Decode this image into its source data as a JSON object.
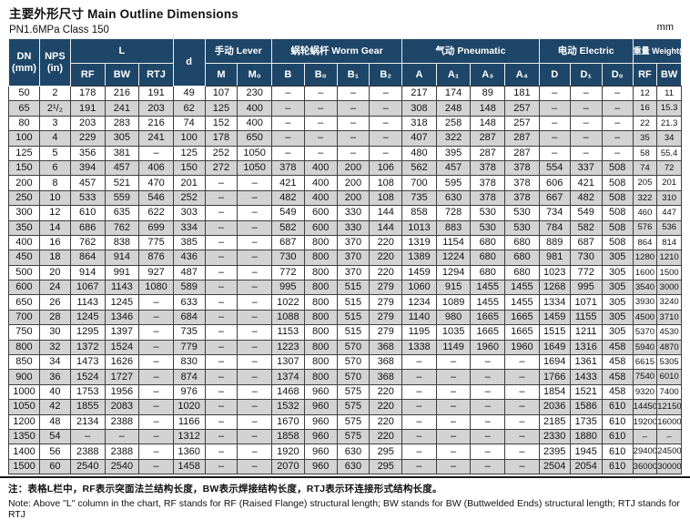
{
  "header": {
    "title": "主要外形尺寸 Main Outline Dimensions",
    "subtitle": "PN1.6MPa  Class 150",
    "unit_label": "mm"
  },
  "table": {
    "groups": {
      "dn": [
        "DN",
        "(mm)"
      ],
      "nps": [
        "NPS",
        "(in)"
      ],
      "l": "L",
      "d": "d",
      "lever": "手动 Lever",
      "worm_gear": "蜗轮蜗杆 Worm Gear",
      "pneumatic": "气动 Pneumatic",
      "electric": "电动 Electric",
      "weight": "重量 Weight(kg)"
    },
    "subheaders": [
      "RF",
      "BW",
      "RTJ",
      "M",
      "M₀",
      "B",
      "B₀",
      "B₁",
      "B₂",
      "A",
      "A₁",
      "A₃",
      "A₄",
      "D",
      "D₁",
      "D₀",
      "RF",
      "BW"
    ],
    "rows": [
      [
        "50",
        "2",
        "178",
        "216",
        "191",
        "49",
        "107",
        "230",
        "–",
        "–",
        "–",
        "–",
        "217",
        "174",
        "89",
        "181",
        "–",
        "–",
        "–",
        "12",
        "11"
      ],
      [
        "65",
        "2¹/₂",
        "191",
        "241",
        "203",
        "62",
        "125",
        "400",
        "–",
        "–",
        "–",
        "–",
        "308",
        "248",
        "148",
        "257",
        "–",
        "–",
        "–",
        "16",
        "15.3"
      ],
      [
        "80",
        "3",
        "203",
        "283",
        "216",
        "74",
        "152",
        "400",
        "–",
        "–",
        "–",
        "–",
        "318",
        "258",
        "148",
        "257",
        "–",
        "–",
        "–",
        "22",
        "21.3"
      ],
      [
        "100",
        "4",
        "229",
        "305",
        "241",
        "100",
        "178",
        "650",
        "–",
        "–",
        "–",
        "–",
        "407",
        "322",
        "287",
        "287",
        "–",
        "–",
        "–",
        "35",
        "34"
      ],
      [
        "125",
        "5",
        "356",
        "381",
        "–",
        "125",
        "252",
        "1050",
        "–",
        "–",
        "–",
        "–",
        "480",
        "395",
        "287",
        "287",
        "–",
        "–",
        "–",
        "58",
        "55.4"
      ],
      [
        "150",
        "6",
        "394",
        "457",
        "406",
        "150",
        "272",
        "1050",
        "378",
        "400",
        "200",
        "106",
        "562",
        "457",
        "378",
        "378",
        "554",
        "337",
        "508",
        "74",
        "72"
      ],
      [
        "200",
        "8",
        "457",
        "521",
        "470",
        "201",
        "–",
        "–",
        "421",
        "400",
        "200",
        "108",
        "700",
        "595",
        "378",
        "378",
        "606",
        "421",
        "508",
        "205",
        "201"
      ],
      [
        "250",
        "10",
        "533",
        "559",
        "546",
        "252",
        "–",
        "–",
        "482",
        "400",
        "200",
        "108",
        "735",
        "630",
        "378",
        "378",
        "667",
        "482",
        "508",
        "322",
        "310"
      ],
      [
        "300",
        "12",
        "610",
        "635",
        "622",
        "303",
        "–",
        "–",
        "549",
        "600",
        "330",
        "144",
        "858",
        "728",
        "530",
        "530",
        "734",
        "549",
        "508",
        "460",
        "447"
      ],
      [
        "350",
        "14",
        "686",
        "762",
        "699",
        "334",
        "–",
        "–",
        "582",
        "600",
        "330",
        "144",
        "1013",
        "883",
        "530",
        "530",
        "784",
        "582",
        "508",
        "576",
        "536"
      ],
      [
        "400",
        "16",
        "762",
        "838",
        "775",
        "385",
        "–",
        "–",
        "687",
        "800",
        "370",
        "220",
        "1319",
        "1154",
        "680",
        "680",
        "889",
        "687",
        "508",
        "864",
        "814"
      ],
      [
        "450",
        "18",
        "864",
        "914",
        "876",
        "436",
        "–",
        "–",
        "730",
        "800",
        "370",
        "220",
        "1389",
        "1224",
        "680",
        "680",
        "981",
        "730",
        "305",
        "1280",
        "1210"
      ],
      [
        "500",
        "20",
        "914",
        "991",
        "927",
        "487",
        "–",
        "–",
        "772",
        "800",
        "370",
        "220",
        "1459",
        "1294",
        "680",
        "680",
        "1023",
        "772",
        "305",
        "1600",
        "1500"
      ],
      [
        "600",
        "24",
        "1067",
        "1143",
        "1080",
        "589",
        "–",
        "–",
        "995",
        "800",
        "515",
        "279",
        "1060",
        "915",
        "1455",
        "1455",
        "1268",
        "995",
        "305",
        "3540",
        "3000"
      ],
      [
        "650",
        "26",
        "1143",
        "1245",
        "–",
        "633",
        "–",
        "–",
        "1022",
        "800",
        "515",
        "279",
        "1234",
        "1089",
        "1455",
        "1455",
        "1334",
        "1071",
        "305",
        "3930",
        "3240"
      ],
      [
        "700",
        "28",
        "1245",
        "1346",
        "–",
        "684",
        "–",
        "–",
        "1088",
        "800",
        "515",
        "279",
        "1140",
        "980",
        "1665",
        "1665",
        "1459",
        "1155",
        "305",
        "4500",
        "3710"
      ],
      [
        "750",
        "30",
        "1295",
        "1397",
        "–",
        "735",
        "–",
        "–",
        "1153",
        "800",
        "515",
        "279",
        "1195",
        "1035",
        "1665",
        "1665",
        "1515",
        "1211",
        "305",
        "5370",
        "4530"
      ],
      [
        "800",
        "32",
        "1372",
        "1524",
        "–",
        "779",
        "–",
        "–",
        "1223",
        "800",
        "570",
        "368",
        "1338",
        "1149",
        "1960",
        "1960",
        "1649",
        "1316",
        "458",
        "5940",
        "4870"
      ],
      [
        "850",
        "34",
        "1473",
        "1626",
        "–",
        "830",
        "–",
        "–",
        "1307",
        "800",
        "570",
        "368",
        "–",
        "–",
        "–",
        "–",
        "1694",
        "1361",
        "458",
        "6615",
        "5305"
      ],
      [
        "900",
        "36",
        "1524",
        "1727",
        "–",
        "874",
        "–",
        "–",
        "1374",
        "800",
        "570",
        "368",
        "–",
        "–",
        "–",
        "–",
        "1766",
        "1433",
        "458",
        "7540",
        "6010"
      ],
      [
        "1000",
        "40",
        "1753",
        "1956",
        "–",
        "976",
        "–",
        "–",
        "1468",
        "960",
        "575",
        "220",
        "–",
        "–",
        "–",
        "–",
        "1854",
        "1521",
        "458",
        "9320",
        "7400"
      ],
      [
        "1050",
        "42",
        "1855",
        "2083",
        "–",
        "1020",
        "–",
        "–",
        "1532",
        "960",
        "575",
        "220",
        "–",
        "–",
        "–",
        "–",
        "2036",
        "1586",
        "610",
        "14450",
        "12150"
      ],
      [
        "1200",
        "48",
        "2134",
        "2388",
        "–",
        "1166",
        "–",
        "–",
        "1670",
        "960",
        "575",
        "220",
        "–",
        "–",
        "–",
        "–",
        "2185",
        "1735",
        "610",
        "19200",
        "16000"
      ],
      [
        "1350",
        "54",
        "–",
        "–",
        "–",
        "1312",
        "–",
        "–",
        "1858",
        "960",
        "575",
        "220",
        "–",
        "–",
        "–",
        "–",
        "2330",
        "1880",
        "610",
        "–",
        "–"
      ],
      [
        "1400",
        "56",
        "2388",
        "2388",
        "–",
        "1360",
        "–",
        "–",
        "1920",
        "960",
        "630",
        "295",
        "–",
        "–",
        "–",
        "–",
        "2395",
        "1945",
        "610",
        "29400",
        "24500"
      ],
      [
        "1500",
        "60",
        "2540",
        "2540",
        "–",
        "1458",
        "–",
        "–",
        "2070",
        "960",
        "630",
        "295",
        "–",
        "–",
        "–",
        "–",
        "2504",
        "2054",
        "610",
        "36000",
        "30000"
      ]
    ]
  },
  "footer": {
    "note_zh": "注：表格L栏中，RF表示突面法兰结构长度，BW表示焊接结构长度，RTJ表示环连接形式结构长度。",
    "note_en": "Note: Above \"L\" column in the chart, RF stands for RF (Raised Flange) structural length; BW stands for BW (Buttwelded Ends) structural length; RTJ stands for RTJ"
  },
  "colors": {
    "header_bg": "#1e4668",
    "row_alt_bg": "#d3d3d3",
    "grid": "#3e3e3e"
  }
}
